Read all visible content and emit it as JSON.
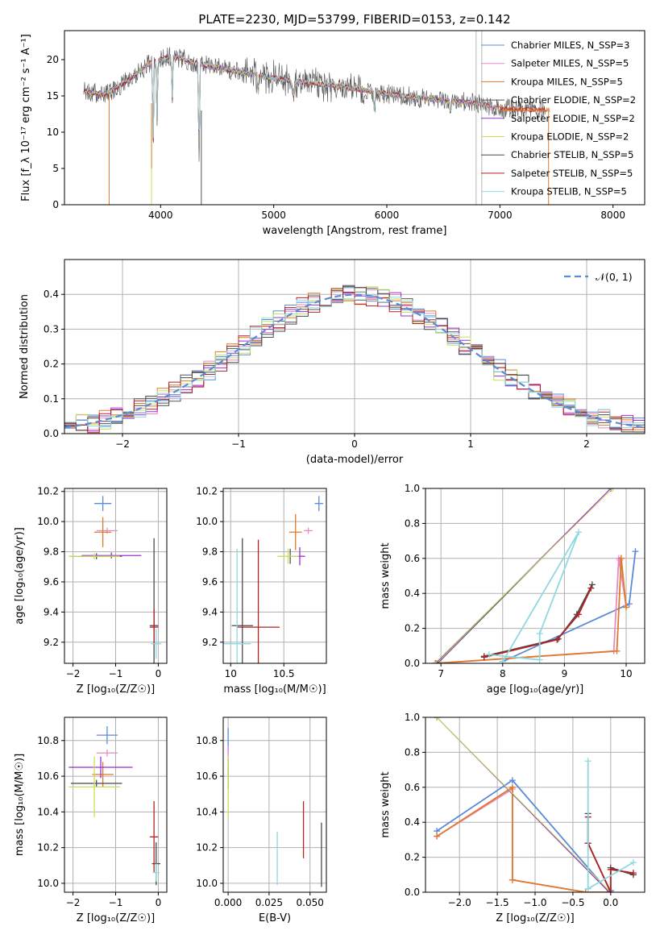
{
  "title": "PLATE=2230, MJD=53799, FIBERID=0153, z=0.142",
  "colors": {
    "grid": "#b0b0b0",
    "gauss": "#5b8ad8",
    "series": [
      "#5b8ad8",
      "#e78ac3",
      "#e07a2b",
      "#555555",
      "#9b30d0",
      "#c5e05a",
      "#4a4a4a",
      "#b22222",
      "#8fd8e0"
    ]
  },
  "chart_data": [
    {
      "id": "spectrum",
      "type": "line",
      "xlabel": "wavelength [Angstrom, rest frame]",
      "ylabel": "Flux [f_λ 10⁻¹⁷ erg cm⁻² s⁻¹ A⁻¹]",
      "xlim": [
        3150,
        8280
      ],
      "ylim": [
        0,
        24
      ],
      "xticks": [
        4000,
        5000,
        6000,
        7000,
        8000
      ],
      "yticks": [
        0,
        5,
        10,
        15,
        20
      ],
      "grid": false,
      "legend": "top-right",
      "legend_entries": [
        "Chabrier MILES, N_SSP=3",
        "Salpeter MILES, N_SSP=5",
        "Kroupa MILES, N_SSP=5",
        "Chabrier ELODIE, N_SSP=2",
        "Salpeter ELODIE, N_SSP=2",
        "Kroupa ELODIE, N_SSP=2",
        "Chabrier STELIB, N_SSP=5",
        "Salpeter STELIB, N_SSP=5",
        "Kroupa STELIB, N_SSP=5"
      ],
      "continuum": {
        "x": [
          3320,
          3500,
          3700,
          3900,
          4100,
          4400,
          4800,
          5200,
          5600,
          6000,
          6400,
          6800,
          7000,
          7400
        ],
        "y": [
          15.6,
          15.2,
          17.0,
          19.5,
          20.5,
          19.2,
          18.0,
          17.0,
          16.3,
          15.3,
          14.5,
          14.0,
          13.3,
          13.0
        ]
      }
    },
    {
      "id": "residuals",
      "type": "histogram",
      "xlabel": "(data-model)/error",
      "ylabel": "Normed distribution",
      "xlim": [
        -2.5,
        2.5
      ],
      "ylim": [
        0,
        0.5
      ],
      "xticks": [
        -2,
        -1,
        0,
        1,
        2
      ],
      "yticks": [
        0.0,
        0.1,
        0.2,
        0.3,
        0.4
      ],
      "grid": true,
      "legend": "top-right",
      "legend_entries": [
        "𝒩(0, 1)"
      ]
    },
    {
      "id": "age_vs_Z",
      "type": "scatter",
      "xlabel": "Z [log₁₀(Z/Z☉)]",
      "ylabel": "age  [log₁₀(age/yr)]",
      "xlim": [
        -2.2,
        0.2
      ],
      "ylim": [
        9.06,
        10.22
      ],
      "xticks": [
        -2,
        -1,
        0
      ],
      "yticks": [
        9.2,
        9.4,
        9.6,
        9.8,
        10.0,
        10.2
      ],
      "grid": true,
      "points": [
        {
          "s": 0,
          "x": -1.3,
          "xerr": 0.2,
          "y": 10.12,
          "yerr": 0.05
        },
        {
          "s": 1,
          "x": -1.2,
          "xerr": 0.25,
          "y": 9.94,
          "yerr": 0.02
        },
        {
          "s": 2,
          "x": -1.3,
          "xerr": 0.2,
          "y": 9.93,
          "yerr": 0.1
        },
        {
          "s": 3,
          "x": -1.45,
          "xerr": 0.6,
          "y": 9.77,
          "yerr": 0.02
        },
        {
          "s": 4,
          "x": -1.1,
          "xerr": 0.7,
          "y": 9.775,
          "yerr": 0.02
        },
        {
          "s": 5,
          "x": -1.5,
          "xerr": 0.6,
          "y": 9.77,
          "yerr": 0.02
        },
        {
          "s": 6,
          "x": -0.1,
          "xerr": 0.1,
          "y": 9.31,
          "yerr": 0.58
        },
        {
          "s": 7,
          "x": -0.1,
          "xerr": 0.1,
          "y": 9.3,
          "yerr": 0.12
        },
        {
          "s": 8,
          "x": -0.05,
          "xerr": 0.12,
          "y": 9.19,
          "yerr": 0.1
        }
      ]
    },
    {
      "id": "age_vs_mass",
      "type": "scatter",
      "xlabel": "mass [log₁₀(M/M☉)]",
      "ylabel": "",
      "xlim": [
        9.93,
        10.9
      ],
      "ylim": [
        9.06,
        10.22
      ],
      "xticks": [
        10.0,
        10.5
      ],
      "yticks": [
        9.2,
        9.4,
        9.6,
        9.8,
        10.0,
        10.2
      ],
      "grid": true,
      "points": [
        {
          "s": 0,
          "x": 10.83,
          "xerr": 0.04,
          "y": 10.12,
          "yerr": 0.05
        },
        {
          "s": 1,
          "x": 10.73,
          "xerr": 0.04,
          "y": 9.94,
          "yerr": 0.02
        },
        {
          "s": 2,
          "x": 10.61,
          "xerr": 0.06,
          "y": 9.93,
          "yerr": 0.12
        },
        {
          "s": 3,
          "x": 10.56,
          "xerr": 0.02,
          "y": 9.77,
          "yerr": 0.05
        },
        {
          "s": 4,
          "x": 10.65,
          "xerr": 0.05,
          "y": 9.77,
          "yerr": 0.06
        },
        {
          "s": 5,
          "x": 10.54,
          "xerr": 0.1,
          "y": 9.77,
          "yerr": 0.05
        },
        {
          "s": 6,
          "x": 10.11,
          "xerr": 0.1,
          "y": 9.31,
          "yerr": 0.58
        },
        {
          "s": 7,
          "x": 10.26,
          "xerr": 0.2,
          "y": 9.3,
          "yerr": 0.58
        },
        {
          "s": 8,
          "x": 10.06,
          "xerr": 0.13,
          "y": 9.19,
          "yerr": 0.63
        }
      ]
    },
    {
      "id": "weight_vs_age",
      "type": "line",
      "xlabel": "age  [log₁₀(age/yr)]",
      "ylabel": "mass weight",
      "xlim": [
        6.75,
        10.3
      ],
      "ylim": [
        0,
        1
      ],
      "xticks": [
        7,
        8,
        9,
        10
      ],
      "yticks": [
        0.0,
        0.2,
        0.4,
        0.6,
        0.8,
        1.0
      ],
      "grid": true,
      "lines": [
        {
          "s": 0,
          "x": [
            8.0,
            10.05,
            10.15
          ],
          "y": [
            0.01,
            0.34,
            0.64
          ]
        },
        {
          "s": 1,
          "x": [
            6.95,
            9.8,
            9.88,
            10.0,
            9.9
          ],
          "y": [
            0.0,
            0.07,
            0.6,
            0.33,
            0.59
          ]
        },
        {
          "s": 2,
          "x": [
            6.9,
            9.85,
            9.92,
            10.0,
            9.92
          ],
          "y": [
            0.0,
            0.07,
            0.6,
            0.32,
            0.6
          ]
        },
        {
          "s": 3,
          "x": [
            6.95,
            9.75
          ],
          "y": [
            0.0,
            1.0
          ]
        },
        {
          "s": 4,
          "x": [
            6.92,
            9.75
          ],
          "y": [
            0.0,
            1.0
          ]
        },
        {
          "s": 5,
          "x": [
            6.9,
            9.78
          ],
          "y": [
            0.0,
            1.0
          ]
        },
        {
          "s": 6,
          "x": [
            7.7,
            8.9,
            9.2,
            9.45
          ],
          "y": [
            0.04,
            0.14,
            0.28,
            0.45
          ]
        },
        {
          "s": 7,
          "x": [
            7.7,
            8.88,
            9.23,
            9.43
          ],
          "y": [
            0.035,
            0.135,
            0.28,
            0.43
          ]
        },
        {
          "s": 8,
          "x": [
            7.78,
            8.6,
            8.6,
            9.23,
            8.0
          ],
          "y": [
            0.05,
            0.02,
            0.17,
            0.75,
            0.01
          ]
        }
      ]
    },
    {
      "id": "mass_vs_Z",
      "type": "scatter",
      "xlabel": "Z [log₁₀(Z/Z☉)]",
      "ylabel": "mass [log₁₀(M/M☉)]",
      "xlim": [
        -2.2,
        0.2
      ],
      "ylim": [
        9.95,
        10.93
      ],
      "xticks": [
        -2,
        -1,
        0
      ],
      "yticks": [
        10.0,
        10.2,
        10.4,
        10.6,
        10.8
      ],
      "grid": true,
      "points": [
        {
          "s": 0,
          "x": -1.2,
          "xerr": 0.25,
          "y": 10.83,
          "yerr": 0.05
        },
        {
          "s": 1,
          "x": -1.2,
          "xerr": 0.25,
          "y": 10.73,
          "yerr": 0.02
        },
        {
          "s": 2,
          "x": -1.3,
          "xerr": 0.25,
          "y": 10.61,
          "yerr": 0.07
        },
        {
          "s": 3,
          "x": -1.45,
          "xerr": 0.6,
          "y": 10.56,
          "yerr": 0.02
        },
        {
          "s": 4,
          "x": -1.35,
          "xerr": 0.75,
          "y": 10.65,
          "yerr": 0.06
        },
        {
          "s": 5,
          "x": -1.5,
          "xerr": 0.6,
          "y": 10.54,
          "yerr": 0.17
        },
        {
          "s": 6,
          "x": -0.05,
          "xerr": 0.1,
          "y": 10.11,
          "yerr": 0.12
        },
        {
          "s": 7,
          "x": -0.1,
          "xerr": 0.1,
          "y": 10.26,
          "yerr": 0.2
        },
        {
          "s": 8,
          "x": -0.05,
          "xerr": 0.08,
          "y": 10.06,
          "yerr": 0.05
        }
      ]
    },
    {
      "id": "mass_vs_ebv",
      "type": "scatter",
      "xlabel": "E(B-V)",
      "ylabel": "",
      "xlim": [
        -0.003,
        0.06
      ],
      "ylim": [
        9.95,
        10.93
      ],
      "xticks": [
        0.0,
        0.025,
        0.05
      ],
      "xticklabels": [
        "0.000",
        "0.025",
        "0.050"
      ],
      "yticks": [
        10.0,
        10.2,
        10.4,
        10.6,
        10.8
      ],
      "grid": true,
      "points": [
        {
          "s": 0,
          "x": 0.0,
          "xerr": 0,
          "y": 10.8,
          "yerr": 0.07
        },
        {
          "s": 1,
          "x": 0.0,
          "xerr": 0,
          "y": 10.72,
          "yerr": 0.05
        },
        {
          "s": 2,
          "x": 0.0,
          "xerr": 0,
          "y": 10.62,
          "yerr": 0.03
        },
        {
          "s": 3,
          "x": 0.0,
          "xerr": 0,
          "y": 10.56,
          "yerr": 0.03
        },
        {
          "s": 4,
          "x": 0.0,
          "xerr": 0,
          "y": 10.65,
          "yerr": 0.05
        },
        {
          "s": 5,
          "x": 0.0,
          "xerr": 0,
          "y": 10.54,
          "yerr": 0.17
        },
        {
          "s": 6,
          "x": 0.057,
          "xerr": 0,
          "y": 10.16,
          "yerr": 0.18
        },
        {
          "s": 7,
          "x": 0.046,
          "xerr": 0,
          "y": 10.3,
          "yerr": 0.16
        },
        {
          "s": 8,
          "x": 0.03,
          "xerr": 0,
          "y": 10.14,
          "yerr": 0.15
        }
      ]
    },
    {
      "id": "weight_vs_Z",
      "type": "line",
      "xlabel": "Z [log₁₀(Z/Z☉)]",
      "ylabel": "mass weight",
      "xlim": [
        -2.45,
        0.45
      ],
      "ylim": [
        0,
        1
      ],
      "xticks": [
        -2.0,
        -1.5,
        -1.0,
        -0.5,
        0.0
      ],
      "xticklabels": [
        "−2.0",
        "−1.5",
        "−1.0",
        "−0.5",
        "0.0"
      ],
      "yticks": [
        0.0,
        0.2,
        0.4,
        0.6,
        0.8,
        1.0
      ],
      "grid": true,
      "lines": [
        {
          "s": 0,
          "x": [
            -2.3,
            -1.3,
            -0.02,
            0.0
          ],
          "y": [
            0.35,
            0.64,
            0.0,
            0.01
          ]
        },
        {
          "s": 1,
          "x": [
            -2.3,
            -1.3,
            -1.3,
            -0.33,
            0.0
          ],
          "y": [
            0.32,
            0.59,
            0.07,
            0.0,
            0.0
          ]
        },
        {
          "s": 2,
          "x": [
            -2.3,
            -1.3,
            -1.3,
            -0.33,
            0.0
          ],
          "y": [
            0.32,
            0.6,
            0.07,
            0.0,
            0.0
          ]
        },
        {
          "s": 3,
          "x": [
            -2.3,
            -0.02
          ],
          "y": [
            1.0,
            0.0
          ]
        },
        {
          "s": 4,
          "x": [
            -2.3,
            -0.02
          ],
          "y": [
            1.0,
            0.0
          ]
        },
        {
          "s": 5,
          "x": [
            -2.3,
            0.0
          ],
          "y": [
            1.0,
            0.0
          ]
        },
        {
          "s": 6,
          "x": [
            -0.3,
            -0.3,
            0.0,
            0.0,
            0.3
          ],
          "y": [
            0.45,
            0.28,
            0.0,
            0.14,
            0.1
          ]
        },
        {
          "s": 7,
          "x": [
            -0.3,
            -0.3,
            0.0,
            0.0,
            0.3
          ],
          "y": [
            0.43,
            0.28,
            0.0,
            0.13,
            0.11
          ]
        },
        {
          "s": 8,
          "x": [
            -0.3,
            -0.3,
            -0.3,
            0.3
          ],
          "y": [
            0.75,
            0.02,
            0.02,
            0.17
          ]
        }
      ]
    }
  ]
}
